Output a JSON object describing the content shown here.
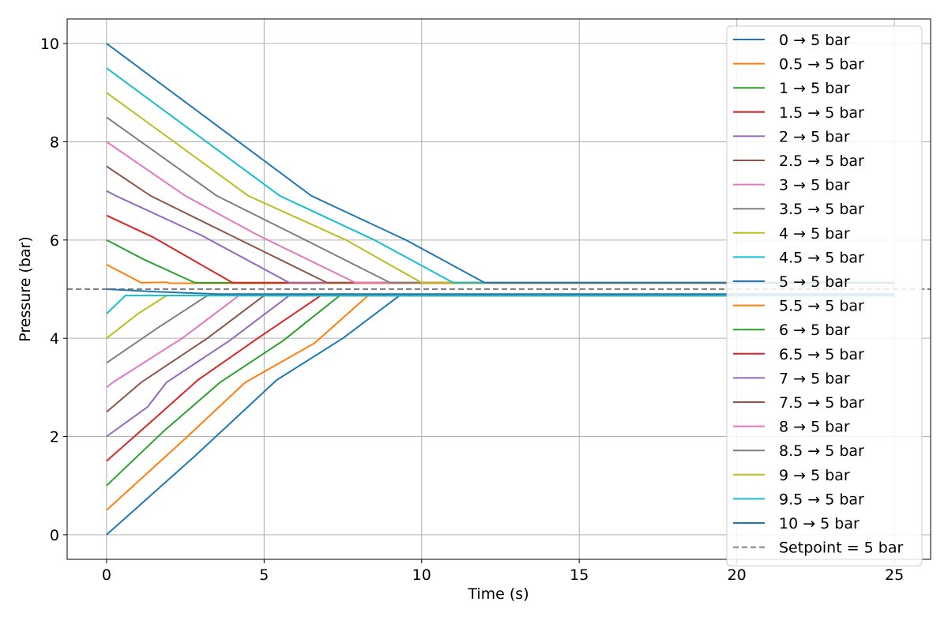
{
  "chart_data": {
    "type": "line",
    "title": "",
    "xlabel": "Time (s)",
    "ylabel": "Pressure (bar)",
    "xlim": [
      -1.25,
      26.15
    ],
    "ylim": [
      -0.5,
      10.5
    ],
    "xticks": [
      0,
      5,
      10,
      15,
      20,
      25
    ],
    "yticks": [
      0,
      2,
      4,
      6,
      8,
      10
    ],
    "grid": true,
    "legend_position": "upper right",
    "colors": [
      "#1f77b4",
      "#ff7f0e",
      "#2ca02c",
      "#d62728",
      "#9467bd",
      "#8c564b",
      "#e377c2",
      "#7f7f7f",
      "#bcbd22",
      "#17becf"
    ],
    "series": [
      {
        "name": "0 → 5 bar",
        "points": [
          [
            0,
            0.0
          ],
          [
            2.8,
            1.6
          ],
          [
            5.4,
            3.15
          ],
          [
            7.5,
            4.0
          ],
          [
            9.3,
            4.87
          ],
          [
            25,
            4.87
          ]
        ]
      },
      {
        "name": "0.5 → 5 bar",
        "points": [
          [
            0,
            0.5
          ],
          [
            2.4,
            1.9
          ],
          [
            4.4,
            3.1
          ],
          [
            6.6,
            3.9
          ],
          [
            8.3,
            4.87
          ],
          [
            25,
            4.87
          ]
        ]
      },
      {
        "name": "1 → 5 bar",
        "points": [
          [
            0,
            1.0
          ],
          [
            1.8,
            2.1
          ],
          [
            3.6,
            3.1
          ],
          [
            5.6,
            3.95
          ],
          [
            7.4,
            4.87
          ],
          [
            25,
            4.87
          ]
        ]
      },
      {
        "name": "1.5 → 5 bar",
        "points": [
          [
            0,
            1.5
          ],
          [
            1.5,
            2.35
          ],
          [
            2.9,
            3.15
          ],
          [
            4.8,
            4.0
          ],
          [
            6.8,
            4.87
          ],
          [
            25,
            4.87
          ]
        ]
      },
      {
        "name": "2 → 5 bar",
        "points": [
          [
            0,
            2.0
          ],
          [
            1.3,
            2.6
          ],
          [
            1.9,
            3.1
          ],
          [
            3.9,
            3.95
          ],
          [
            5.8,
            4.87
          ],
          [
            25,
            4.87
          ]
        ]
      },
      {
        "name": "2.5 → 5 bar",
        "points": [
          [
            0,
            2.5
          ],
          [
            1.1,
            3.1
          ],
          [
            3.2,
            4.0
          ],
          [
            5.0,
            4.87
          ],
          [
            25,
            4.87
          ]
        ]
      },
      {
        "name": "3 → 5 bar",
        "points": [
          [
            0,
            3.0
          ],
          [
            0.2,
            3.1
          ],
          [
            2.4,
            4.0
          ],
          [
            4.2,
            4.87
          ],
          [
            25,
            4.87
          ]
        ]
      },
      {
        "name": "3.5 → 5 bar",
        "points": [
          [
            0,
            3.5
          ],
          [
            1.6,
            4.2
          ],
          [
            3.2,
            4.87
          ],
          [
            25,
            4.87
          ]
        ]
      },
      {
        "name": "4 → 5 bar",
        "points": [
          [
            0,
            4.0
          ],
          [
            1.0,
            4.5
          ],
          [
            1.9,
            4.87
          ],
          [
            25,
            4.87
          ]
        ]
      },
      {
        "name": "4.5 → 5 bar",
        "points": [
          [
            0,
            4.5
          ],
          [
            0.6,
            4.87
          ],
          [
            25,
            4.87
          ]
        ]
      },
      {
        "name": "5 → 5 bar",
        "points": [
          [
            0,
            5.0
          ],
          [
            1.5,
            4.95
          ],
          [
            3.5,
            4.9
          ],
          [
            25,
            4.9
          ]
        ]
      },
      {
        "name": "5.5 → 5 bar",
        "points": [
          [
            0,
            5.5
          ],
          [
            1.1,
            5.13
          ],
          [
            1.9,
            5.14
          ],
          [
            2.0,
            5.12
          ],
          [
            25,
            5.12
          ]
        ]
      },
      {
        "name": "6 → 5 bar",
        "points": [
          [
            0,
            6.0
          ],
          [
            1.2,
            5.6
          ],
          [
            2.8,
            5.13
          ],
          [
            25,
            5.13
          ]
        ]
      },
      {
        "name": "6.5 → 5 bar",
        "points": [
          [
            0,
            6.5
          ],
          [
            1.5,
            6.05
          ],
          [
            4.0,
            5.13
          ],
          [
            25,
            5.13
          ]
        ]
      },
      {
        "name": "7 → 5 bar",
        "points": [
          [
            0,
            7.0
          ],
          [
            0.3,
            6.9
          ],
          [
            3.0,
            6.1
          ],
          [
            5.8,
            5.13
          ],
          [
            25,
            5.13
          ]
        ]
      },
      {
        "name": "7.5 → 5 bar",
        "points": [
          [
            0,
            7.5
          ],
          [
            1.4,
            6.9
          ],
          [
            4.4,
            5.95
          ],
          [
            7.0,
            5.13
          ],
          [
            25,
            5.13
          ]
        ]
      },
      {
        "name": "8 → 5 bar",
        "points": [
          [
            0,
            8.0
          ],
          [
            2.5,
            6.9
          ],
          [
            4.8,
            6.1
          ],
          [
            7.9,
            5.13
          ],
          [
            25,
            5.13
          ]
        ]
      },
      {
        "name": "8.5 → 5 bar",
        "points": [
          [
            0,
            8.5
          ],
          [
            3.5,
            6.9
          ],
          [
            6.0,
            6.1
          ],
          [
            9.0,
            5.13
          ],
          [
            25,
            5.13
          ]
        ]
      },
      {
        "name": "9 → 5 bar",
        "points": [
          [
            0,
            9.0
          ],
          [
            4.5,
            6.9
          ],
          [
            7.6,
            6.0
          ],
          [
            10.0,
            5.13
          ],
          [
            25,
            5.13
          ]
        ]
      },
      {
        "name": "9.5 → 5 bar",
        "points": [
          [
            0,
            9.5
          ],
          [
            5.5,
            6.9
          ],
          [
            8.5,
            6.0
          ],
          [
            11.0,
            5.13
          ],
          [
            25,
            5.13
          ]
        ]
      },
      {
        "name": "10 → 5 bar",
        "points": [
          [
            0,
            10.0
          ],
          [
            6.5,
            6.9
          ],
          [
            9.5,
            6.0
          ],
          [
            12.0,
            5.13
          ],
          [
            25,
            5.13
          ]
        ]
      }
    ],
    "reference_line": {
      "name": "Setpoint = 5 bar",
      "y": 5,
      "style": "dashed",
      "color": "#808080"
    }
  }
}
